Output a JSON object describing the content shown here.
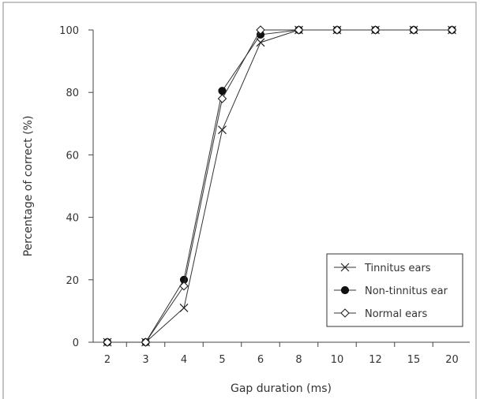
{
  "chart_data": {
    "type": "line",
    "xlabel": "Gap duration (ms)",
    "ylabel": "Percentage of correct (%)",
    "categories": [
      "2",
      "3",
      "4",
      "5",
      "6",
      "8",
      "10",
      "12",
      "15",
      "20"
    ],
    "ylim": [
      0,
      100
    ],
    "yticks": [
      0,
      20,
      40,
      60,
      80,
      100
    ],
    "grid": false,
    "legend_position": "bottom-right",
    "series": [
      {
        "name": "Tinnitus ears",
        "marker": "x",
        "values": [
          0,
          0,
          11,
          68,
          96,
          100,
          100,
          100,
          100,
          100
        ]
      },
      {
        "name": "Non-tinnitus ear",
        "marker": "filled-circle",
        "values": [
          0,
          0,
          20,
          80.5,
          98.5,
          100,
          100,
          100,
          100,
          100
        ]
      },
      {
        "name": "Normal ears",
        "marker": "open-diamond",
        "values": [
          0,
          0,
          18,
          78,
          100,
          100,
          100,
          100,
          100,
          100
        ]
      }
    ]
  }
}
